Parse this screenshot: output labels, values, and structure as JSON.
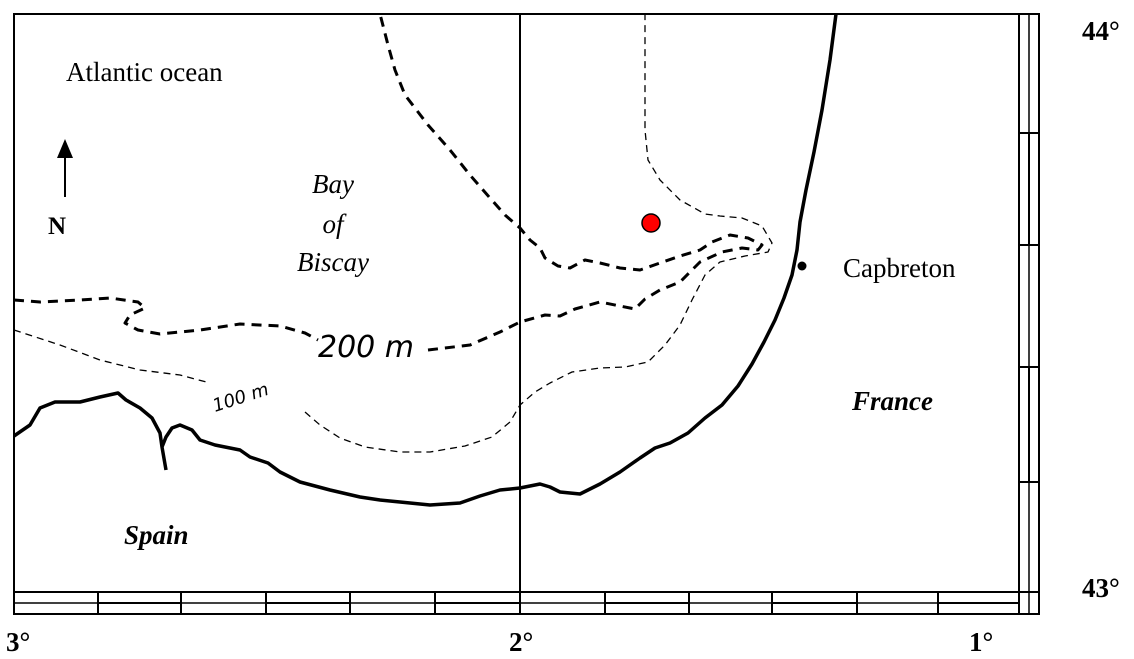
{
  "map": {
    "labels": {
      "ocean": "Atlantic ocean",
      "bay_line1": "Bay",
      "bay_line2": "of",
      "bay_line3": "Biscay",
      "spain": "Spain",
      "france": "France",
      "capbreton": "Capbreton",
      "north": "N"
    },
    "contours": {
      "depth_200": "200 m",
      "depth_100": "100 m"
    },
    "longitude_labels": [
      "3°",
      "2°",
      "1°"
    ],
    "latitude_labels": [
      "44°",
      "43°"
    ],
    "marker": {
      "color": "#ff0000",
      "type": "site"
    },
    "colors": {
      "land_line": "#000000",
      "background": "#ffffff"
    }
  }
}
